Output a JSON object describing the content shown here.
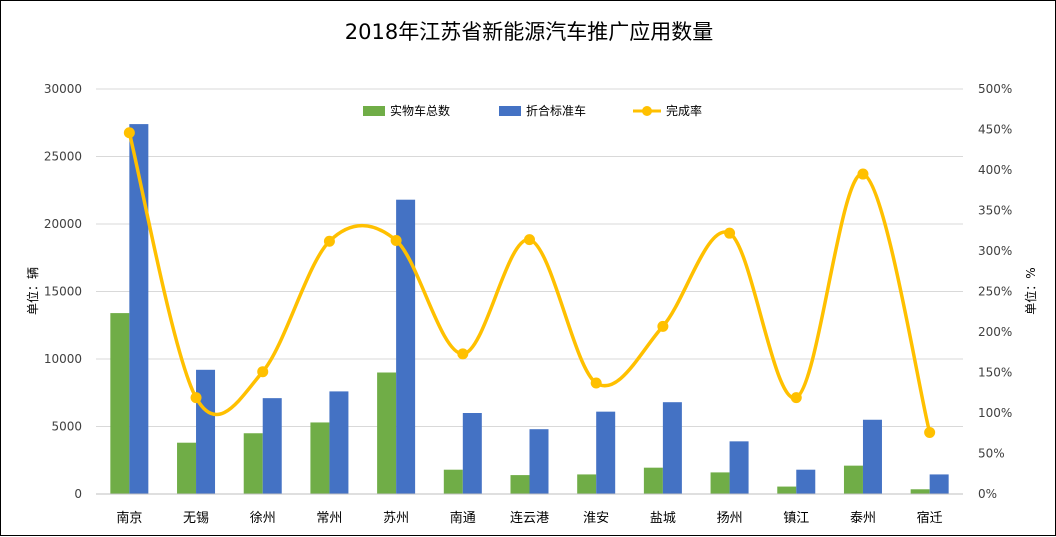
{
  "chart_data": {
    "type": "bar",
    "title": "2018年江苏省新能源汽车推广应用数量",
    "ylabel": "单位：辆",
    "y2label": "单位：%",
    "categories": [
      "南京",
      "无锡",
      "徐州",
      "常州",
      "苏州",
      "南通",
      "连云港",
      "淮安",
      "盐城",
      "扬州",
      "镇江",
      "泰州",
      "宿迁"
    ],
    "ylim": [
      0,
      30000
    ],
    "yticks": [
      0,
      5000,
      10000,
      15000,
      20000,
      25000,
      30000
    ],
    "y2lim": [
      0,
      500
    ],
    "y2ticks": [
      "0%",
      "50%",
      "100%",
      "150%",
      "200%",
      "250%",
      "300%",
      "350%",
      "400%",
      "450%",
      "500%"
    ],
    "series": [
      {
        "name": "实物车总数",
        "type": "bar",
        "axis": "left",
        "color": "#70ad47",
        "values": [
          13400,
          3800,
          4500,
          5300,
          9000,
          1800,
          1400,
          1450,
          1950,
          1600,
          550,
          2100,
          350
        ]
      },
      {
        "name": "折合标准车",
        "type": "bar",
        "axis": "left",
        "color": "#4472c4",
        "values": [
          27400,
          9200,
          7100,
          7600,
          21800,
          6000,
          4800,
          6100,
          6800,
          3900,
          1800,
          5500,
          1450
        ]
      },
      {
        "name": "完成率",
        "type": "line",
        "axis": "right",
        "unit": "%",
        "color": "#ffc000",
        "values": [
          446,
          119,
          151,
          312,
          313,
          173,
          314,
          137,
          207,
          322,
          119,
          395,
          76
        ]
      }
    ],
    "legend_position": "top",
    "grid": true
  }
}
